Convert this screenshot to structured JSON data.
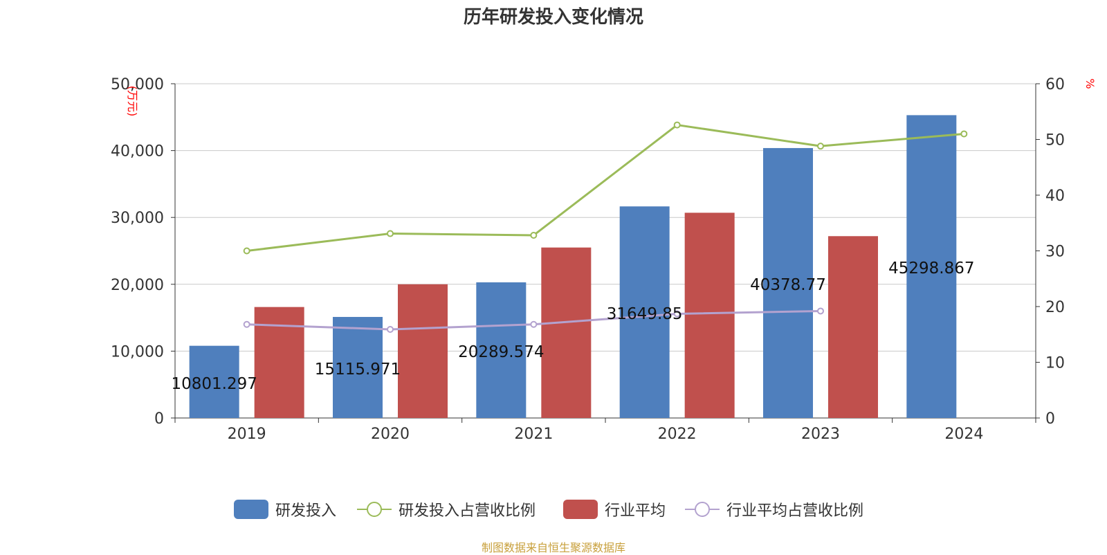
{
  "title": "历年研发投入变化情况",
  "source": "制图数据来自恒生聚源数据库",
  "colors": {
    "rd_bar": "#4f7fbd",
    "ind_bar": "#c0504d",
    "rd_ratio_line": "#9bbb59",
    "ind_ratio_line": "#b3a2cf",
    "axis_unit": "#ff0000",
    "grid": "#c8c8c8",
    "axis": "#333333"
  },
  "legend": [
    {
      "name": "研发投入",
      "kind": "bar",
      "color": "#4f7fbd"
    },
    {
      "name": "研发投入占营收比例",
      "kind": "line",
      "color": "#9bbb59"
    },
    {
      "name": "行业平均",
      "kind": "bar",
      "color": "#c0504d"
    },
    {
      "name": "行业平均占营收比例",
      "kind": "line",
      "color": "#b3a2cf"
    }
  ],
  "chart_data": {
    "type": "bar",
    "categories": [
      "2019",
      "2020",
      "2021",
      "2022",
      "2023",
      "2024"
    ],
    "y_left": {
      "unit": "(万元)",
      "ylim": [
        0,
        50000
      ],
      "ticks": [
        "0",
        "10,000",
        "20,000",
        "30,000",
        "40,000",
        "50,000"
      ]
    },
    "y_right": {
      "unit": "%",
      "ylim": [
        0,
        60
      ],
      "ticks": [
        "0",
        "10",
        "20",
        "30",
        "40",
        "50",
        "60"
      ]
    },
    "grid": true,
    "legend_position": "bottom",
    "series": [
      {
        "name": "研发投入",
        "type": "bar",
        "axis": "left",
        "values": [
          10801.297,
          15115.971,
          20289.574,
          31649.85,
          40378.77,
          45298.867
        ],
        "labels": [
          "10801.297",
          "15115.971",
          "20289.574",
          "31649.85",
          "40378.77",
          "45298.867"
        ]
      },
      {
        "name": "行业平均",
        "type": "bar",
        "axis": "left",
        "values": [
          16600,
          20000,
          25500,
          30700,
          27200,
          null
        ]
      },
      {
        "name": "研发投入占营收比例",
        "type": "line",
        "axis": "right",
        "values": [
          30.0,
          33.1,
          32.8,
          52.6,
          48.8,
          51.0
        ]
      },
      {
        "name": "行业平均占营收比例",
        "type": "line",
        "axis": "right",
        "values": [
          16.8,
          15.9,
          16.8,
          18.7,
          19.2,
          null
        ]
      }
    ]
  }
}
